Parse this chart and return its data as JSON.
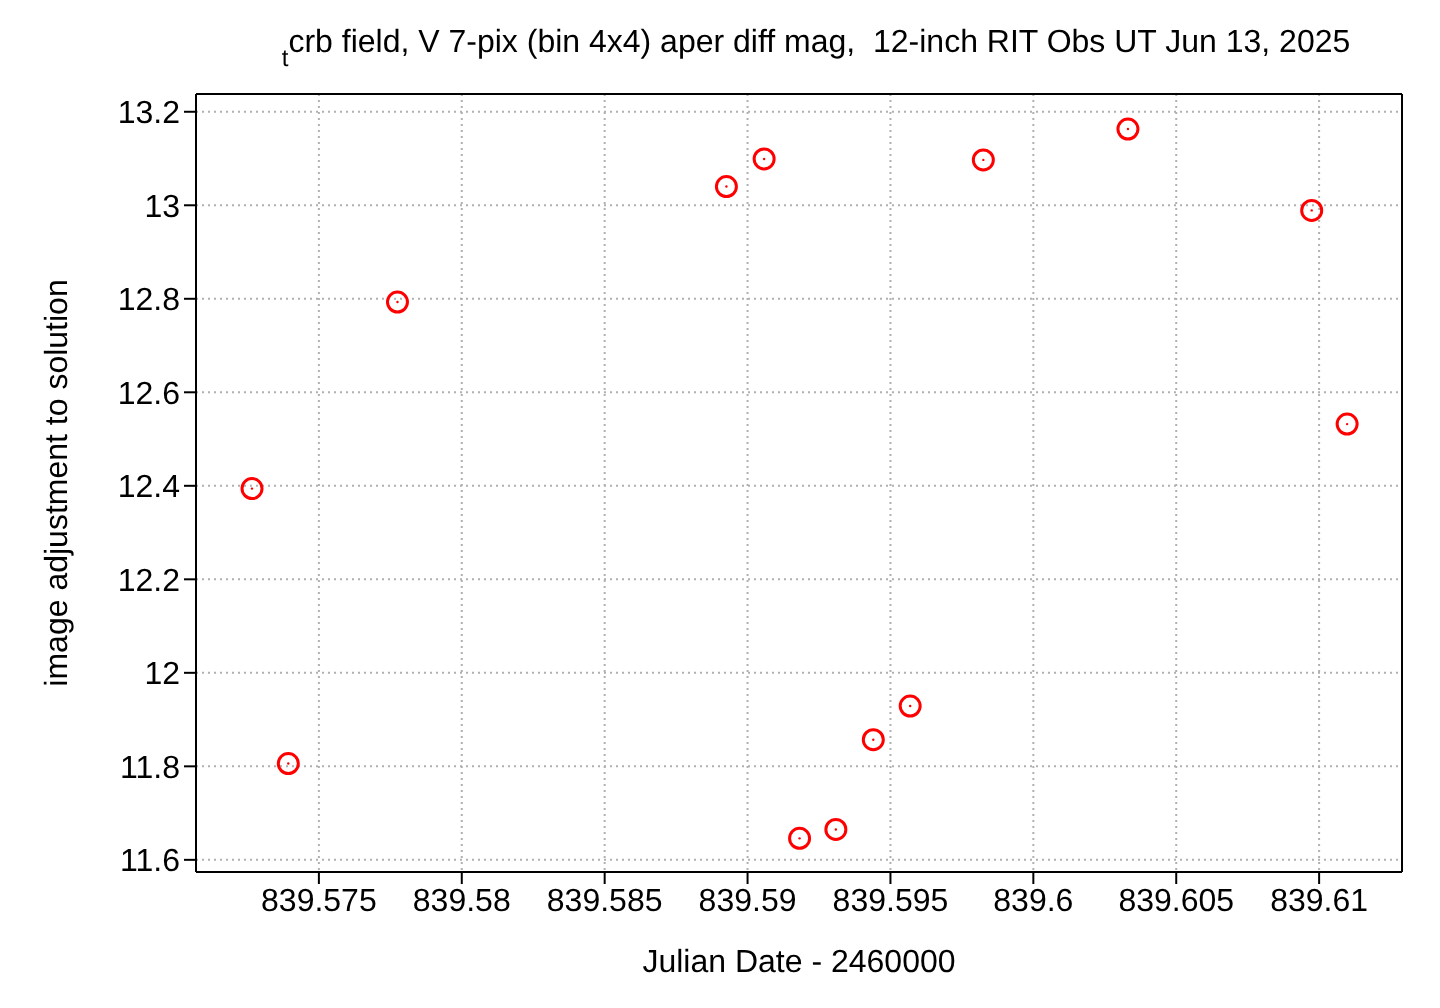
{
  "chart_data": {
    "type": "scatter",
    "title": "$_{t}$crb field, V 7-pix (bin 4x4) aper diff mag,  12-inch RIT Obs UT Jun 13, 2025",
    "xlabel": "Julian Date - 2460000",
    "ylabel": "image adjustment to solution",
    "x": [
      839.57266,
      839.57393,
      839.57775,
      839.58926,
      839.59058,
      839.59182,
      839.59309,
      839.5944,
      839.59569,
      839.59825,
      839.60331,
      839.60974,
      839.61098
    ],
    "series": [
      {
        "color": "#ff0000",
        "values": [
          12.394,
          11.806,
          12.793,
          13.04,
          13.099,
          11.646,
          11.665,
          11.857,
          11.929,
          13.097,
          13.163,
          12.989,
          12.532
        ]
      }
    ],
    "xlim": [
      839.5707,
      839.6129
    ],
    "xticks": [
      839.575,
      839.58,
      839.585,
      839.59,
      839.595,
      839.6,
      839.605,
      839.61
    ],
    "ylim": [
      11.574,
      13.238
    ],
    "yticks": [
      11.6,
      11.8,
      12,
      12.2,
      12.4,
      12.6,
      12.8,
      13,
      13.2
    ],
    "grid": true,
    "marker": "circle"
  }
}
